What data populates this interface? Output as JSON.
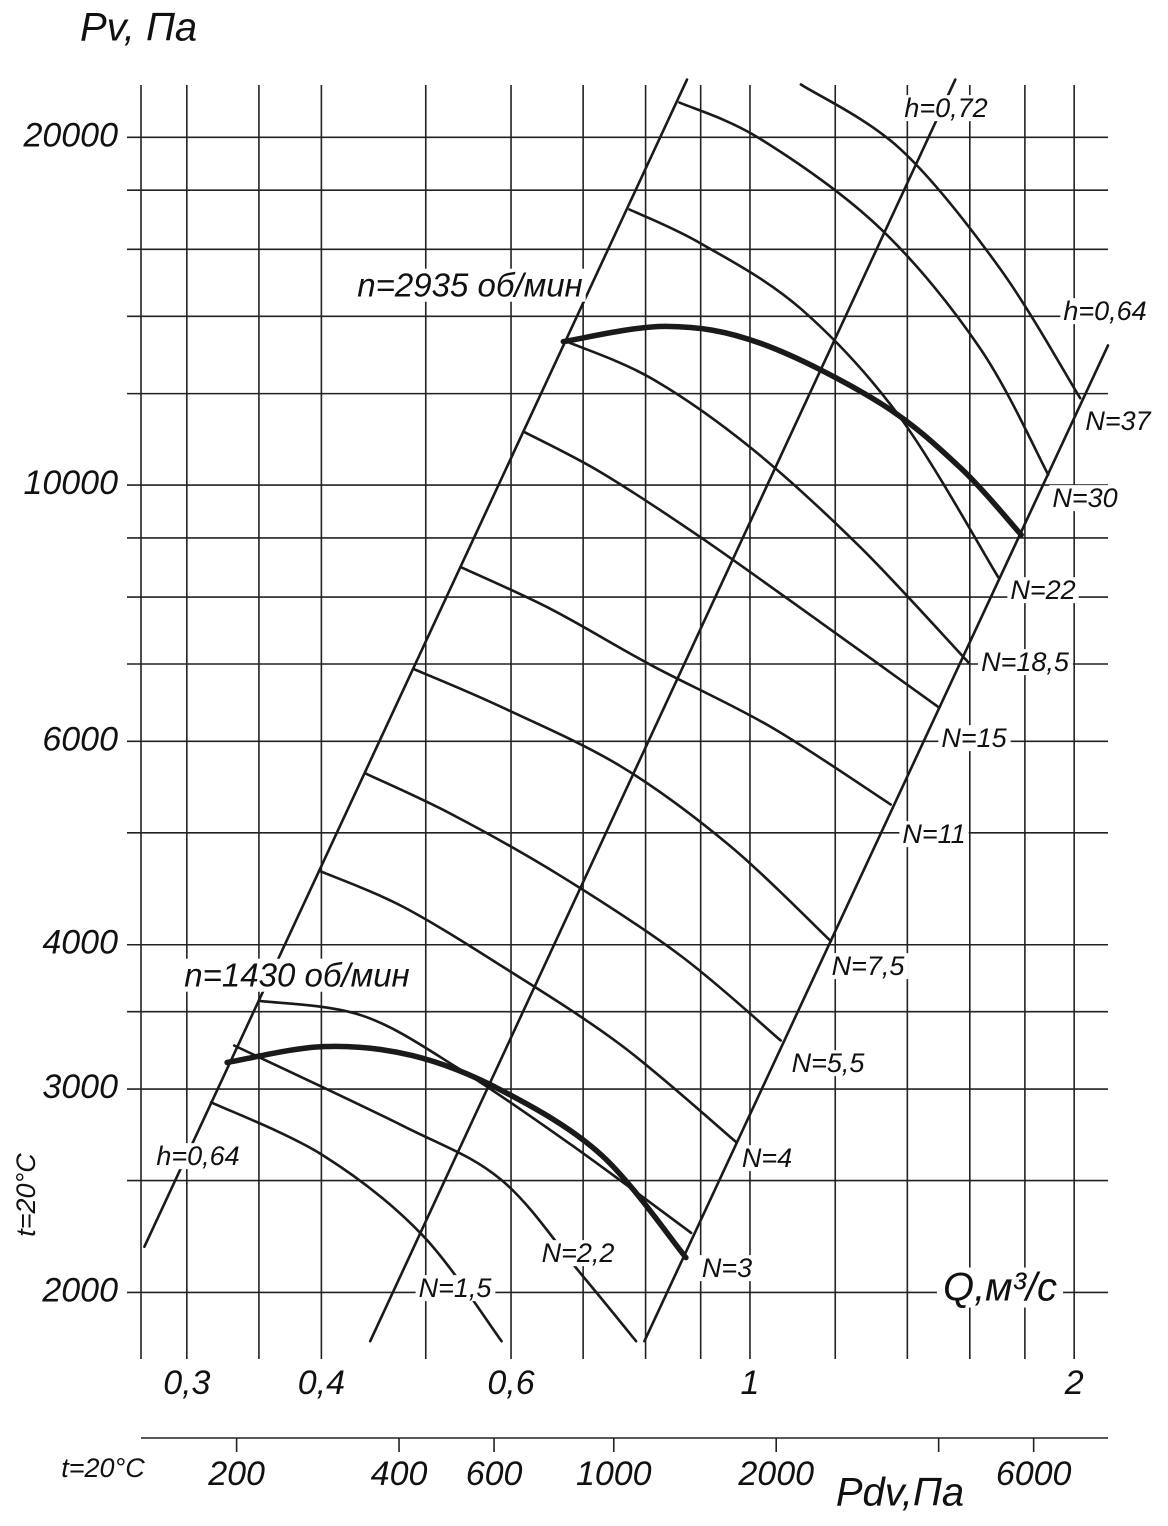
{
  "chart_data": {
    "type": "line",
    "y_label": "Pv, Па",
    "x_label": "Q,м³/с",
    "x2_label": "Pdv,Па",
    "y_side_label": "t=20°C",
    "x2_side_label": "t=20°C",
    "log_x": true,
    "log_y": true,
    "xlim": [
      0.272,
      2.15
    ],
    "ylim": [
      1794,
      22200
    ],
    "xticks": [
      {
        "value": 0.3,
        "label": "0,3"
      },
      {
        "value": 0.4,
        "label": "0,4"
      },
      {
        "value": 0.6,
        "label": "0,6"
      },
      1,
      2
    ],
    "xgrid": [
      0.35,
      0.5,
      0.7,
      0.8,
      0.9,
      1.2,
      1.4,
      1.6,
      1.8
    ],
    "yticks": [
      2000,
      3000,
      4000,
      6000,
      10000,
      20000
    ],
    "ygrid": [
      2500,
      3500,
      5000,
      7000,
      8000,
      9000,
      12000,
      14000,
      16000,
      18000
    ],
    "x2lim": [
      133,
      8240
    ],
    "x2ticks": [
      200,
      400,
      600,
      1000,
      2000,
      6000
    ],
    "x2minor": [
      4000
    ],
    "grid": true,
    "series": [
      {
        "name": "h=0,64",
        "color": "#1a1a1a",
        "width": 2.6,
        "x": [
          0.274,
          0.874
        ],
        "values": [
          2191,
          22440
        ]
      },
      {
        "name": "h=0,72",
        "color": "#1a1a1a",
        "width": 2.6,
        "x": [
          0.444,
          1.551
        ],
        "values": [
          1815,
          22440
        ]
      },
      {
        "name": "h=0,64",
        "color": "#1a1a1a",
        "width": 2.6,
        "x": [
          0.798,
          2.15
        ],
        "values": [
          1815,
          13210
        ]
      },
      {
        "name": "N=37",
        "color": "#1a1a1a",
        "width": 2.6,
        "x": [
          1.115,
          1.38,
          1.708,
          2.026
        ],
        "values": [
          22220,
          19530,
          15380,
          11890
        ]
      },
      {
        "name": "N=30",
        "color": "#1a1a1a",
        "width": 2.6,
        "x": [
          0.86,
          1.024,
          1.322,
          1.636,
          1.892
        ],
        "values": [
          21440,
          19920,
          16670,
          13130,
          10210
        ]
      },
      {
        "name": "n=2935 об/мин",
        "color": "#1a1a1a",
        "width": 5.5,
        "x": [
          0.671,
          0.836,
          1.024,
          1.322,
          1.568,
          1.786
        ],
        "values": [
          13310,
          13720,
          13260,
          11770,
          10350,
          9057
        ]
      },
      {
        "name": "N=22",
        "color": "#1a1a1a",
        "width": 2.6,
        "x": [
          0.773,
          0.901,
          1.115,
          1.38,
          1.701
        ],
        "values": [
          17320,
          16180,
          14210,
          11430,
          8318
        ]
      },
      {
        "name": "N=18,5",
        "color": "#1a1a1a",
        "width": 2.6,
        "x": [
          0.676,
          0.81,
          1.002,
          1.267,
          1.595
        ],
        "values": [
          13310,
          12370,
          10770,
          8828,
          7024
        ]
      },
      {
        "name": "N=15",
        "color": "#1a1a1a",
        "width": 2.6,
        "x": [
          0.618,
          0.728,
          0.901,
          1.163,
          1.496
        ],
        "values": [
          11110,
          10250,
          9004,
          7605,
          6424
        ]
      },
      {
        "name": "N=11",
        "color": "#1a1a1a",
        "width": 2.6,
        "x": [
          0.54,
          0.654,
          0.81,
          1.046,
          1.351
        ],
        "values": [
          8484,
          7806,
          6982,
          6174,
          5290
        ]
      },
      {
        "name": "N=7,5",
        "color": "#1a1a1a",
        "width": 2.6,
        "x": [
          0.488,
          0.588,
          0.76,
          0.96,
          1.189
        ],
        "values": [
          6927,
          6424,
          5703,
          4864,
          4028
        ]
      },
      {
        "name": "N=5,5",
        "color": "#1a1a1a",
        "width": 2.6,
        "x": [
          0.44,
          0.529,
          0.668,
          0.863,
          1.068
        ],
        "values": [
          5625,
          5186,
          4585,
          3911,
          3305
        ]
      },
      {
        "name": "N=4",
        "color": "#1a1a1a",
        "width": 2.6,
        "x": [
          0.399,
          0.475,
          0.588,
          0.76,
          0.971
        ],
        "values": [
          4632,
          4320,
          3834,
          3272,
          2699
        ]
      },
      {
        "name": "N=3",
        "color": "#1a1a1a",
        "width": 2.6,
        "x": [
          0.35,
          0.437,
          0.54,
          0.683,
          0.882
        ],
        "values": [
          3577,
          3472,
          3113,
          2683,
          2252
        ]
      },
      {
        "name": "n=1430 об/мин",
        "color": "#1a1a1a",
        "width": 5.5,
        "x": [
          0.327,
          0.401,
          0.486,
          0.588,
          0.728,
          0.872
        ],
        "values": [
          3163,
          3265,
          3207,
          2992,
          2630,
          2144
        ]
      },
      {
        "name": "N=2,2",
        "color": "#1a1a1a",
        "width": 2.6,
        "x": [
          0.332,
          0.475,
          0.588,
          0.6975,
          0.784
        ],
        "values": [
          3272,
          2791,
          2502,
          2073,
          1815
        ]
      },
      {
        "name": "N=1,5",
        "color": "#1a1a1a",
        "width": 2.6,
        "x": [
          0.316,
          0.401,
          0.496,
          0.588
        ],
        "values": [
          2922,
          2630,
          2244,
          1815
        ]
      }
    ]
  }
}
